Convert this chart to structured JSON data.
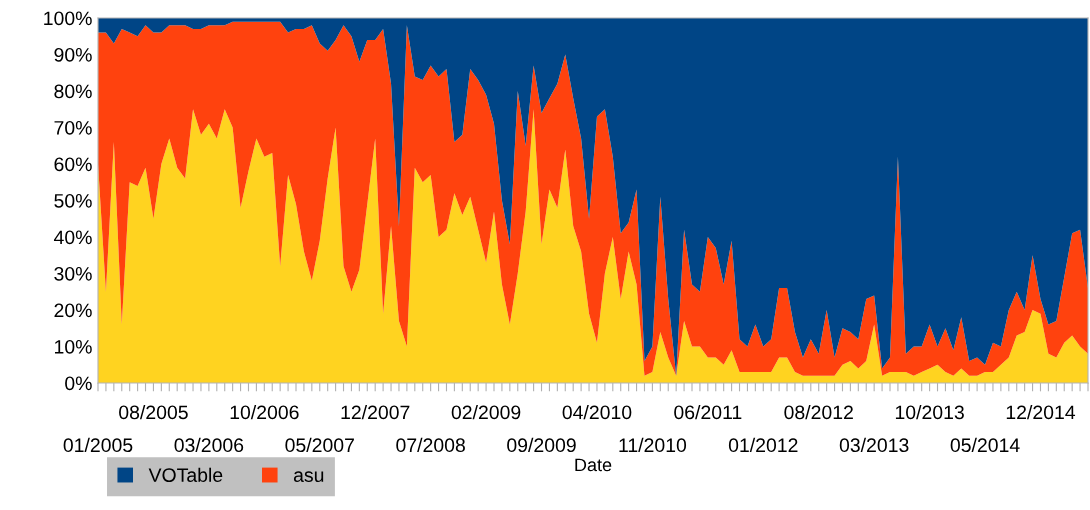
{
  "chart_data": {
    "type": "area",
    "stacked": true,
    "xlabel": "Date",
    "categories": [
      "01/2005",
      null,
      null,
      null,
      null,
      null,
      null,
      "08/2005",
      null,
      null,
      null,
      null,
      null,
      null,
      "03/2006",
      null,
      null,
      null,
      null,
      null,
      null,
      "10/2006",
      null,
      null,
      null,
      null,
      null,
      null,
      "05/2007",
      null,
      null,
      null,
      null,
      null,
      null,
      "12/2007",
      null,
      null,
      null,
      null,
      null,
      null,
      "07/2008",
      null,
      null,
      null,
      null,
      null,
      null,
      "02/2009",
      null,
      null,
      null,
      null,
      null,
      null,
      "09/2009",
      null,
      null,
      null,
      null,
      null,
      null,
      "04/2010",
      null,
      null,
      null,
      null,
      null,
      null,
      "11/2010",
      null,
      null,
      null,
      null,
      null,
      null,
      "06/2011",
      null,
      null,
      null,
      null,
      null,
      null,
      "01/2012",
      null,
      null,
      null,
      null,
      null,
      null,
      "08/2012",
      null,
      null,
      null,
      null,
      null,
      null,
      "03/2013",
      null,
      null,
      null,
      null,
      null,
      null,
      "10/2013",
      null,
      null,
      null,
      null,
      null,
      null,
      "05/2014",
      null,
      null,
      null,
      null,
      null,
      null,
      "12/2014",
      null,
      null,
      null,
      null,
      null,
      null
    ],
    "series": [
      {
        "color": "#ffd320",
        "values": [
          60,
          25,
          66,
          16,
          55,
          54,
          59,
          45,
          60,
          67,
          59,
          56,
          75,
          68,
          71,
          67,
          75,
          70,
          48,
          58,
          67,
          62,
          63,
          32,
          57,
          49,
          36,
          28,
          39,
          56,
          70,
          32,
          25,
          31,
          49,
          67,
          19,
          43,
          17,
          10,
          59,
          55,
          57,
          40,
          42,
          52,
          46,
          51,
          42,
          33,
          47,
          27,
          16,
          30,
          47,
          75,
          38,
          53,
          48,
          64,
          43,
          36,
          19,
          11,
          30,
          40,
          23,
          36,
          27,
          2,
          3,
          14,
          7,
          2,
          17,
          10,
          10,
          7,
          7,
          5,
          9,
          3,
          3,
          3,
          3,
          3,
          7,
          7,
          3,
          2,
          2,
          2,
          2,
          2,
          5,
          6,
          4,
          6,
          16,
          2,
          3,
          3,
          3,
          2,
          3,
          4,
          5,
          3,
          2,
          4,
          2,
          2,
          3,
          3,
          5,
          7,
          13,
          14,
          20,
          19,
          8,
          7,
          11,
          13,
          10,
          8
        ]
      },
      {
        "name": "asu",
        "color": "#ff420e",
        "values": [
          36,
          71,
          27,
          81,
          41,
          41,
          39,
          51,
          36,
          31,
          39,
          42,
          22,
          29,
          27,
          31,
          23,
          29,
          51,
          41,
          32,
          37,
          36,
          67,
          39,
          48,
          61,
          70,
          54,
          35,
          24,
          66,
          70,
          57,
          45,
          27,
          78,
          39,
          26,
          88,
          25,
          28,
          30,
          44,
          44,
          14,
          22,
          35,
          41,
          46,
          24,
          23,
          22,
          50,
          18,
          12,
          36,
          25,
          34,
          26,
          35,
          31,
          26,
          62,
          45,
          22,
          18,
          8,
          26,
          4,
          7,
          37,
          16,
          0,
          25,
          17,
          15,
          33,
          30,
          22,
          30,
          9,
          7,
          13,
          7,
          9,
          19,
          19,
          11,
          5,
          10,
          6,
          18,
          5,
          10,
          8,
          8,
          17,
          8,
          2,
          4,
          59,
          5,
          8,
          7,
          12,
          5,
          12,
          7,
          14,
          4,
          5,
          2,
          8,
          5,
          13,
          12,
          6,
          15,
          4,
          8,
          10,
          18,
          28,
          32,
          18
        ]
      },
      {
        "name": "VOTable",
        "color": "#004586",
        "values": [
          4,
          4,
          7,
          3,
          4,
          5,
          2,
          4,
          4,
          2,
          2,
          2,
          3,
          3,
          2,
          2,
          2,
          1,
          1,
          1,
          1,
          1,
          1,
          1,
          4,
          3,
          3,
          2,
          7,
          9,
          6,
          2,
          5,
          12,
          6,
          6,
          3,
          18,
          57,
          2,
          16,
          17,
          13,
          16,
          14,
          34,
          32,
          14,
          17,
          21,
          29,
          50,
          62,
          20,
          35,
          13,
          26,
          22,
          18,
          10,
          22,
          33,
          55,
          27,
          25,
          38,
          59,
          56,
          47,
          94,
          90,
          49,
          77,
          98,
          58,
          73,
          75,
          60,
          63,
          73,
          61,
          88,
          90,
          84,
          90,
          88,
          74,
          74,
          86,
          93,
          88,
          92,
          80,
          93,
          85,
          86,
          88,
          77,
          76,
          96,
          93,
          38,
          92,
          90,
          90,
          84,
          90,
          85,
          91,
          82,
          94,
          93,
          95,
          89,
          90,
          80,
          75,
          80,
          65,
          77,
          84,
          83,
          71,
          59,
          58,
          74
        ]
      }
    ],
    "ylim": [
      0,
      100
    ],
    "yticks": [
      {
        "value": 0,
        "label": "0%"
      },
      {
        "value": 10,
        "label": "10%"
      },
      {
        "value": 20,
        "label": "20%"
      },
      {
        "value": 30,
        "label": "30%"
      },
      {
        "value": 40,
        "label": "40%"
      },
      {
        "value": 50,
        "label": "50%"
      },
      {
        "value": 60,
        "label": "60%"
      },
      {
        "value": 70,
        "label": "70%"
      },
      {
        "value": 80,
        "label": "80%"
      },
      {
        "value": 90,
        "label": "90%"
      },
      {
        "value": 100,
        "label": "100%"
      }
    ],
    "grid": false,
    "legend": "bottom"
  }
}
